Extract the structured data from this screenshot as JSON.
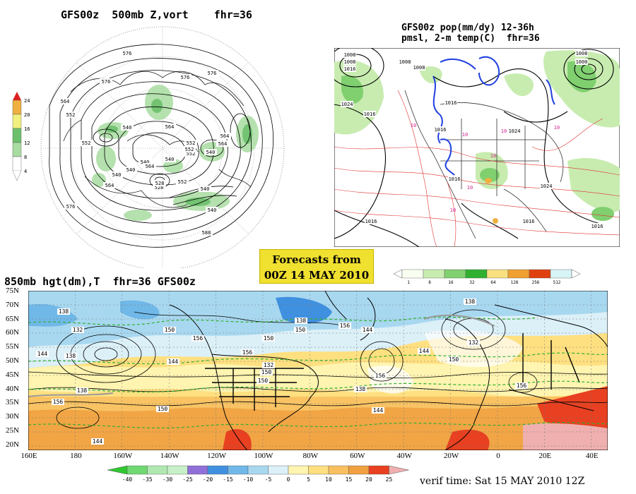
{
  "panel_500mb": {
    "title": "GFS00z  500mb Z,vort    fhr=36",
    "colorbar_ticks": [
      "4",
      "8",
      "12",
      "16",
      "20",
      "24"
    ],
    "contour_labels": [
      "576",
      "576",
      "576",
      "564",
      "552",
      "540",
      "540",
      "552",
      "564",
      "564",
      "540",
      "528",
      "540",
      "552",
      "564",
      "576",
      "540",
      "552",
      "564",
      "576",
      "552",
      "540",
      "528",
      "540",
      "588",
      "564",
      "552",
      "540"
    ]
  },
  "panel_precip": {
    "title_line1": "GFS00z pop(mm/dy) 12-36h",
    "title_line2": "pmsl, 2-m temp(C)  fhr=36",
    "pressure_labels": [
      "1008",
      "1008",
      "1016",
      "1008",
      "1008",
      "1024",
      "1016",
      "1016",
      "1016",
      "1024",
      "1016",
      "1016",
      "1016",
      "1008",
      "1000",
      "1024",
      "1016"
    ],
    "temp_labels": [
      "10",
      "10",
      "10",
      "10",
      "10",
      "10",
      "10"
    ],
    "colorbar_ticks": [
      "1",
      "8",
      "16",
      "32",
      "64",
      "128",
      "256",
      "512"
    ]
  },
  "banner": {
    "line1": "Forecasts from",
    "line2": "00Z 14 MAY 2010"
  },
  "panel_850mb": {
    "title": "850mb hgt(dm),T  fhr=36 GFS00z",
    "lat_labels": [
      "75N",
      "70N",
      "65N",
      "60N",
      "55N",
      "50N",
      "45N",
      "40N",
      "35N",
      "30N",
      "25N",
      "20N"
    ],
    "lon_labels": [
      "160E",
      "180",
      "160W",
      "140W",
      "120W",
      "100W",
      "80W",
      "60W",
      "40W",
      "20W",
      "0",
      "20E",
      "40E"
    ],
    "contour_labels": [
      "138",
      "132",
      "144",
      "138",
      "150",
      "156",
      "156",
      "144",
      "150",
      "138",
      "144",
      "138",
      "150",
      "150",
      "156",
      "144",
      "138",
      "132",
      "150",
      "156",
      "150",
      "156",
      "144",
      "138",
      "132",
      "144",
      "150",
      "156"
    ],
    "colorbar_ticks": [
      "-40",
      "-35",
      "-30",
      "-25",
      "-20",
      "-15",
      "-10",
      "-5",
      "0",
      "5",
      "10",
      "15",
      "20",
      "25"
    ],
    "verif_time": "verif time: Sat 15 MAY 2010 12Z"
  },
  "colors": {
    "vort_scale": [
      "#ffffff",
      "#a8dca0",
      "#6cc06c",
      "#f0f080",
      "#f0b040",
      "#e02020"
    ],
    "precip_scale": [
      "#f8fff0",
      "#c8ecb0",
      "#80d070",
      "#30b030",
      "#f8e080",
      "#f0a030",
      "#e04010",
      "#d8f4f4"
    ],
    "temp_scale": [
      "#30c830",
      "#70d870",
      "#b0e8b0",
      "#c8f0c8",
      "#9070d8",
      "#4090e0",
      "#70b8e8",
      "#a8d8f0",
      "#dcf0f8",
      "#fff4b0",
      "#ffe080",
      "#f8c060",
      "#f0a040",
      "#e84020",
      "#f0b0b0"
    ]
  }
}
